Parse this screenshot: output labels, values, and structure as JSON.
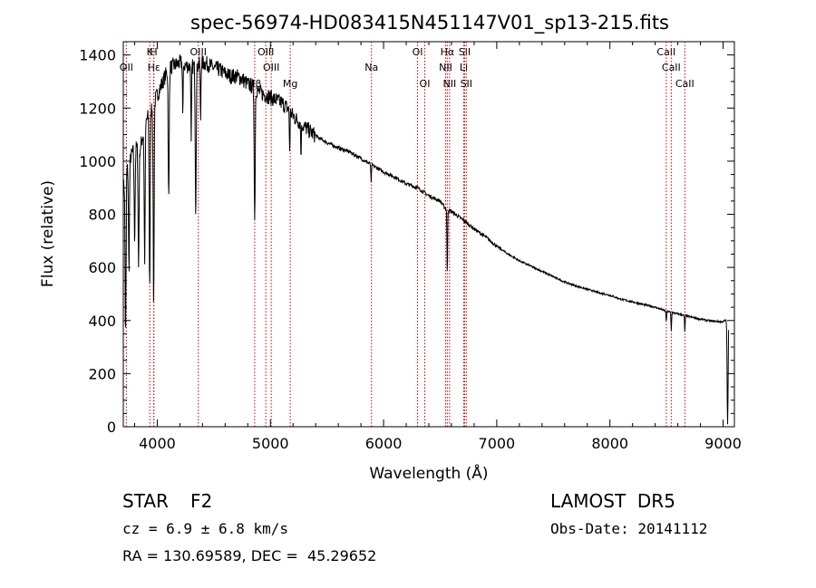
{
  "chart_data": {
    "type": "line",
    "title": "spec-56974-HD083415N451147V01_sp13-215.fits",
    "xlabel": "Wavelength (Å)",
    "ylabel": "Flux (relative)",
    "xlim": [
      3700,
      9100
    ],
    "ylim": [
      0,
      1450
    ],
    "xticks": [
      4000,
      5000,
      6000,
      7000,
      8000,
      9000
    ],
    "yticks": [
      0,
      200,
      400,
      600,
      800,
      1000,
      1200,
      1400
    ],
    "grid": false,
    "legend": "none",
    "series": [
      {
        "x": [
          3700,
          3750,
          3800,
          3850,
          3900,
          3950,
          4000,
          4050,
          4100,
          4150,
          4200,
          4250,
          4300,
          4350,
          4400,
          4450,
          4500,
          4550,
          4600,
          4650,
          4700,
          4750,
          4800,
          4850,
          4900,
          4950,
          5000,
          5050,
          5100,
          5150,
          5200,
          5300,
          5400,
          5500,
          5600,
          5700,
          5800,
          5900,
          6000,
          6100,
          6200,
          6300,
          6400,
          6500,
          6550,
          6600,
          6650,
          6700,
          6800,
          6900,
          7000,
          7100,
          7200,
          7300,
          7400,
          7500,
          7600,
          7700,
          7800,
          7900,
          8000,
          8100,
          8200,
          8300,
          8400,
          8500,
          8600,
          8700,
          8800,
          8900,
          9000,
          9050
        ],
        "y": [
          900,
          1000,
          1050,
          1050,
          1150,
          1200,
          1250,
          1300,
          1350,
          1360,
          1370,
          1360,
          1355,
          1360,
          1370,
          1365,
          1350,
          1345,
          1330,
          1320,
          1320,
          1310,
          1290,
          1280,
          1260,
          1250,
          1240,
          1230,
          1220,
          1200,
          1170,
          1130,
          1095,
          1070,
          1050,
          1035,
          1010,
          985,
          960,
          940,
          915,
          900,
          870,
          850,
          820,
          810,
          795,
          780,
          745,
          715,
          680,
          650,
          625,
          605,
          585,
          565,
          545,
          530,
          518,
          505,
          495,
          480,
          470,
          460,
          450,
          435,
          425,
          415,
          405,
          398,
          395,
          410
        ],
        "absorption": [
          {
            "x": 3720,
            "depth": 600
          },
          {
            "x": 3750,
            "depth": 400
          },
          {
            "x": 3800,
            "depth": 350
          },
          {
            "x": 3835,
            "depth": 450
          },
          {
            "x": 3889,
            "depth": 500
          },
          {
            "x": 3933,
            "depth": 650
          },
          {
            "x": 3968,
            "depth": 750
          },
          {
            "x": 4101,
            "depth": 500
          },
          {
            "x": 4226,
            "depth": 200
          },
          {
            "x": 4300,
            "depth": 300
          },
          {
            "x": 4340,
            "depth": 550
          },
          {
            "x": 4383,
            "depth": 220
          },
          {
            "x": 4861,
            "depth": 500
          },
          {
            "x": 5170,
            "depth": 150
          },
          {
            "x": 5270,
            "depth": 120
          },
          {
            "x": 5890,
            "depth": 70
          },
          {
            "x": 6563,
            "depth": 250
          },
          {
            "x": 8498,
            "depth": 40
          },
          {
            "x": 8542,
            "depth": 70
          },
          {
            "x": 8662,
            "depth": 60
          },
          {
            "x": 9040,
            "depth": 400
          }
        ]
      }
    ],
    "line_markers": [
      {
        "name": "Hβ",
        "x": 4861,
        "row": 3
      },
      {
        "name": "K",
        "x": 3934,
        "row": 1
      },
      {
        "name": "H",
        "x": 3969,
        "row": 1
      },
      {
        "name": "OII",
        "x": 3727,
        "row": 2
      },
      {
        "name": "Hε",
        "x": 3970,
        "row": 2
      },
      {
        "name": "OIII",
        "x": 4363,
        "row": 1
      },
      {
        "name": "OIII",
        "x": 4959,
        "row": 1
      },
      {
        "name": "OIII",
        "x": 5007,
        "row": 2
      },
      {
        "name": "Mg",
        "x": 5175,
        "row": 3
      },
      {
        "name": "Na",
        "x": 5893,
        "row": 2
      },
      {
        "name": "OI",
        "x": 6300,
        "row": 1
      },
      {
        "name": "OI",
        "x": 6364,
        "row": 3
      },
      {
        "name": "Hα",
        "x": 6563,
        "row": 1
      },
      {
        "name": "NII",
        "x": 6548,
        "row": 2
      },
      {
        "name": "NII",
        "x": 6583,
        "row": 3
      },
      {
        "name": "SII",
        "x": 6716,
        "row": 1
      },
      {
        "name": "Li",
        "x": 6708,
        "row": 2
      },
      {
        "name": "SII",
        "x": 6731,
        "row": 3
      },
      {
        "name": "CaII",
        "x": 8498,
        "row": 1
      },
      {
        "name": "CaII",
        "x": 8542,
        "row": 2
      },
      {
        "name": "CaII",
        "x": 8662,
        "row": 3
      }
    ]
  },
  "info": {
    "class_label": "STAR",
    "subclass": "F2",
    "survey": "LAMOST  DR5",
    "cz": "cz = 6.9 ± 6.8 km/s",
    "obs_date": "Obs-Date: 20141112",
    "coords": "RA = 130.69589, DEC =  45.29652"
  },
  "colors": {
    "spectrum": "#000000",
    "marker": "#cc0000",
    "axis": "#000000"
  }
}
